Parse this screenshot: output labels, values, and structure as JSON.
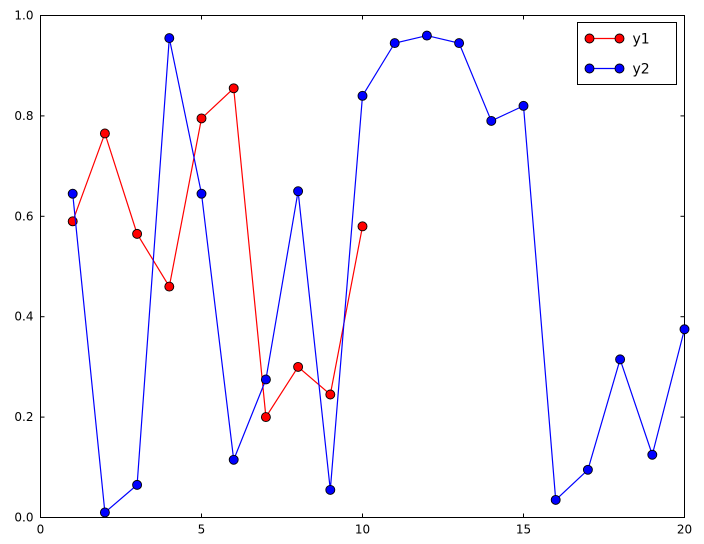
{
  "figure": {
    "background": "#ffffff"
  },
  "chart_data": {
    "type": "line",
    "title": "",
    "xlabel": "",
    "ylabel": "",
    "grid": false,
    "marker": "o",
    "xlim": [
      0,
      20
    ],
    "ylim": [
      0.0,
      1.0
    ],
    "xticks": [
      0,
      5,
      10,
      15,
      20
    ],
    "yticks": [
      0.0,
      0.2,
      0.4,
      0.6,
      0.8,
      1.0
    ],
    "xtick_labels": [
      "0",
      "5",
      "10",
      "15",
      "20"
    ],
    "ytick_labels": [
      "0.0",
      "0.2",
      "0.4",
      "0.6",
      "0.8",
      "1.0"
    ],
    "axis_color": "#000000",
    "marker_edge_color": "#000000",
    "series": [
      {
        "name": "y1",
        "color": "#ff0000",
        "x": [
          1,
          2,
          3,
          4,
          5,
          6,
          7,
          8,
          9,
          10
        ],
        "y": [
          0.59,
          0.765,
          0.565,
          0.46,
          0.795,
          0.855,
          0.2,
          0.3,
          0.245,
          0.58
        ]
      },
      {
        "name": "y2",
        "color": "#0000ff",
        "x": [
          1,
          2,
          3,
          4,
          5,
          6,
          7,
          8,
          9,
          10,
          11,
          12,
          13,
          14,
          15,
          16,
          17,
          18,
          19,
          20
        ],
        "y": [
          0.645,
          0.01,
          0.065,
          0.955,
          0.645,
          0.115,
          0.275,
          0.65,
          0.055,
          0.84,
          0.945,
          0.96,
          0.945,
          0.79,
          0.82,
          0.035,
          0.095,
          0.315,
          0.125,
          0.375
        ]
      }
    ],
    "legend": {
      "position": "upper right",
      "entries": [
        "y1",
        "y2"
      ],
      "border_color": "#000000",
      "background": "#ffffff"
    }
  }
}
